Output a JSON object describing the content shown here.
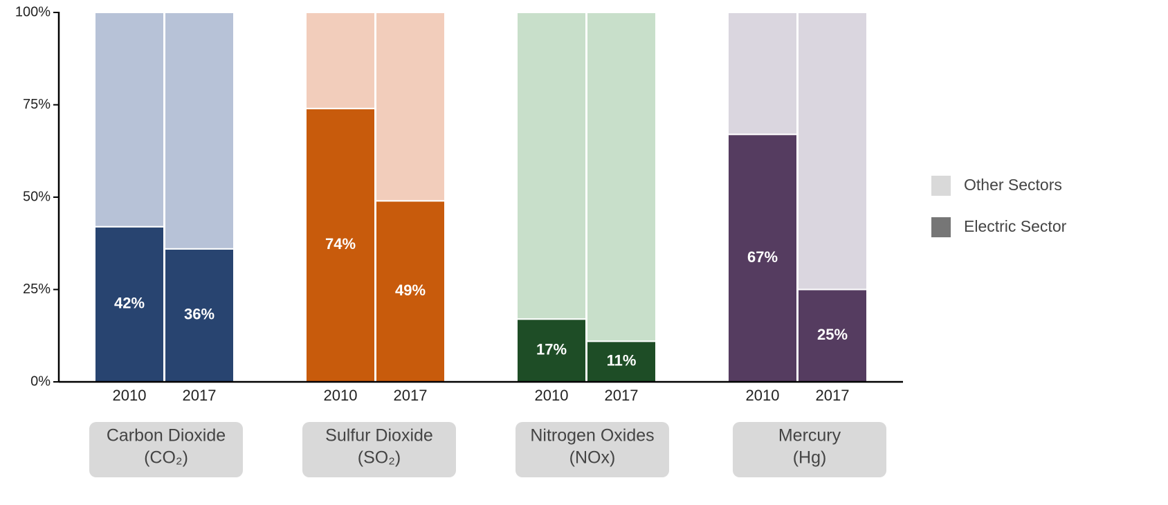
{
  "chart_data": {
    "type": "stacked_bar",
    "categories": [
      "2010",
      "2017",
      "2010",
      "2017",
      "2010",
      "2017",
      "2010",
      "2017"
    ],
    "groups": [
      {
        "label": [
          "Carbon Dioxide",
          "(CO₂)"
        ],
        "colors": [
          "#284470",
          "#b7c2d7"
        ]
      },
      {
        "label": [
          "Sulfur Dioxide",
          "(SO₂)"
        ],
        "colors": [
          "#c85b0c",
          "#f2cdbb"
        ]
      },
      {
        "label": [
          "Nitrogen Oxides",
          "(NOx)"
        ],
        "colors": [
          "#1e4d26",
          "#c8dfca"
        ]
      },
      {
        "label": [
          "Mercury",
          "(Hg)"
        ],
        "colors": [
          "#553c60",
          "#dad6df"
        ]
      }
    ],
    "series": [
      {
        "name": "Electric Sector",
        "color": "#767676",
        "values": [
          42,
          36,
          74,
          49,
          17,
          11,
          67,
          25
        ],
        "value_labels": [
          "42%",
          "36%",
          "74%",
          "49%",
          "17%",
          "11%",
          "67%",
          "25%"
        ]
      },
      {
        "name": "Other Sectors",
        "color": "#d9d9d9",
        "values": [
          58,
          64,
          26,
          51,
          83,
          89,
          33,
          75
        ]
      }
    ],
    "ylim": [
      0,
      100
    ],
    "yticks": [
      {
        "value": 0,
        "label": "0%"
      },
      {
        "value": 25,
        "label": "25%"
      },
      {
        "value": 50,
        "label": "50%"
      },
      {
        "value": 75,
        "label": "75%"
      },
      {
        "value": 100,
        "label": "100%"
      }
    ],
    "legend": "right"
  }
}
